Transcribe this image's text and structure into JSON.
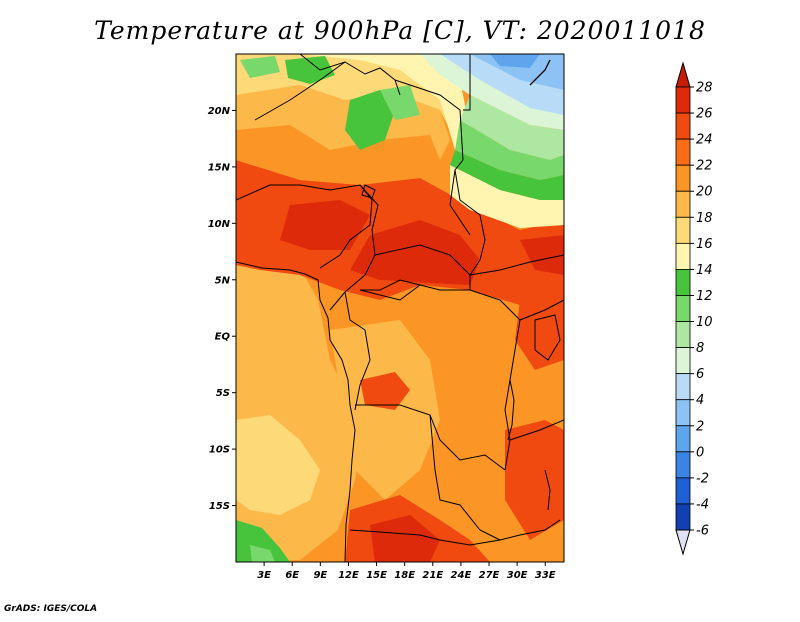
{
  "title": "Temperature at 900hPa [C], VT: 2020011018",
  "credit": "GrADS: IGES/COLA",
  "map": {
    "lon_range": [
      0,
      35
    ],
    "lat_range": [
      -20,
      25
    ],
    "lat_labels": [
      "20N",
      "15N",
      "10N",
      "5N",
      "EQ",
      "5S",
      "10S",
      "15S"
    ],
    "lat_values": [
      20,
      15,
      10,
      5,
      0,
      -5,
      -10,
      -15
    ],
    "lon_labels": [
      "3E",
      "6E",
      "9E",
      "12E",
      "15E",
      "18E",
      "21E",
      "24E",
      "27E",
      "30E",
      "33E"
    ],
    "lon_values": [
      3,
      6,
      9,
      12,
      15,
      18,
      21,
      24,
      27,
      30,
      33
    ]
  },
  "colorbar": {
    "labels": [
      "28",
      "26",
      "24",
      "22",
      "20",
      "18",
      "16",
      "14",
      "12",
      "10",
      "8",
      "6",
      "4",
      "2",
      "0",
      "-2",
      "-4",
      "-6"
    ],
    "colors": [
      "#dd2a0b",
      "#f04a10",
      "#fa6c17",
      "#fb9626",
      "#fdb84a",
      "#fdd977",
      "#fff5b0",
      "#47c43b",
      "#79d86c",
      "#aee7a1",
      "#dcf5d6",
      "#b8dcf8",
      "#8cc3f4",
      "#5fa5ee",
      "#3b84e4",
      "#2060d4",
      "#1240b0",
      "#0b1f80"
    ],
    "top_color": "#c81d05",
    "bottom_color": "#e2e2f7"
  }
}
